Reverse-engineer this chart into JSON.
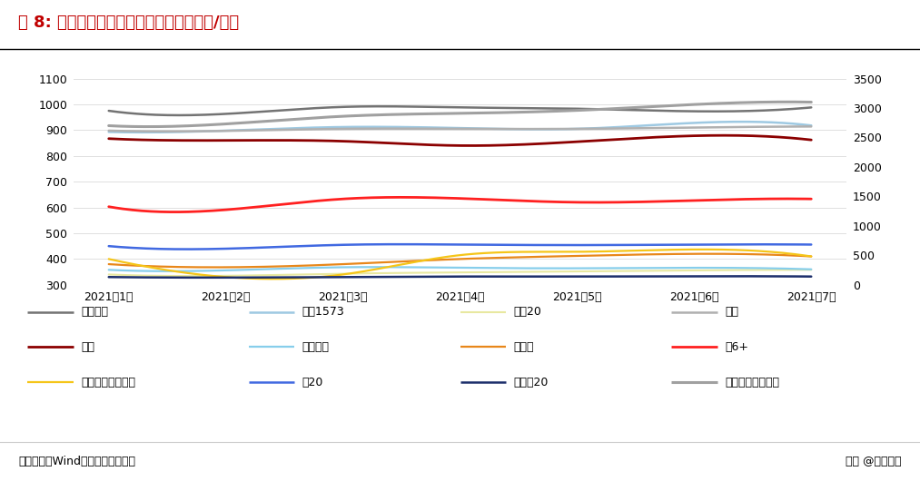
{
  "title": "图 8: 主要单品批价均稳定向上（单位：元/瓶）",
  "x_labels": [
    "2021年1月",
    "2021年2月",
    "2021年3月",
    "2021年4月",
    "2021年5月",
    "2021年6月",
    "2021年7月"
  ],
  "ylim_left": [
    300,
    1100
  ],
  "ylim_right": [
    0,
    3500
  ],
  "yticks_left": [
    300,
    400,
    500,
    600,
    700,
    800,
    900,
    1000,
    1100
  ],
  "yticks_right": [
    0,
    500,
    1000,
    1500,
    2000,
    2500,
    3000,
    3500
  ],
  "source_text": "资料来源：Wind，浙商证券研究所",
  "watermark": "头条 @远瞻智库",
  "series": [
    {
      "name": "八代普五",
      "color": "#737373",
      "linewidth": 1.8,
      "axis": "left",
      "values": [
        975,
        963,
        990,
        988,
        983,
        973,
        988
      ]
    },
    {
      "name": "国窖1573",
      "color": "#9ec9e2",
      "linewidth": 1.8,
      "axis": "left",
      "values": [
        893,
        898,
        912,
        908,
        905,
        928,
        918
      ]
    },
    {
      "name": "青花20",
      "color": "#e8e8a0",
      "linewidth": 1.5,
      "axis": "left",
      "values": [
        340,
        335,
        343,
        348,
        352,
        356,
        358
      ]
    },
    {
      "name": "井台",
      "color": "#b0b0b0",
      "linewidth": 1.8,
      "axis": "left",
      "values": [
        898,
        897,
        905,
        905,
        905,
        910,
        914
      ]
    },
    {
      "name": "内参",
      "color": "#8b0000",
      "linewidth": 2.0,
      "axis": "left",
      "values": [
        867,
        860,
        857,
        840,
        855,
        878,
        862
      ]
    },
    {
      "name": "品味舍得",
      "color": "#87ceeb",
      "linewidth": 1.6,
      "axis": "left",
      "values": [
        358,
        356,
        368,
        366,
        364,
        366,
        360
      ]
    },
    {
      "name": "水晶剑",
      "color": "#e8871a",
      "linewidth": 1.6,
      "axis": "left",
      "values": [
        380,
        368,
        380,
        400,
        412,
        420,
        410
      ]
    },
    {
      "name": "梦6+",
      "color": "#ff2020",
      "linewidth": 2.0,
      "axis": "left",
      "values": [
        603,
        591,
        633,
        635,
        620,
        627,
        633
      ]
    },
    {
      "name": "四开（经历换代）",
      "color": "#f5c518",
      "linewidth": 1.6,
      "axis": "left",
      "values": [
        400,
        330,
        340,
        415,
        428,
        437,
        410
      ]
    },
    {
      "name": "古20",
      "color": "#4169e1",
      "linewidth": 1.8,
      "axis": "left",
      "values": [
        450,
        440,
        455,
        456,
        454,
        456,
        456
      ]
    },
    {
      "name": "口子窖20",
      "color": "#1c2e6b",
      "linewidth": 1.8,
      "axis": "left",
      "values": [
        330,
        328,
        330,
        332,
        332,
        333,
        332
      ]
    },
    {
      "name": "飞天茅台（右轴）",
      "color": "#a0a0a0",
      "linewidth": 2.2,
      "axis": "right",
      "values": [
        2700,
        2730,
        2860,
        2910,
        2960,
        3060,
        3100
      ]
    }
  ],
  "legend_order": [
    [
      "八代普五",
      "国窖1573",
      "青花20",
      "井台"
    ],
    [
      "内参",
      "品味舍得",
      "水晶剑",
      "梦6+"
    ],
    [
      "四开（经历换代）",
      "古20",
      "口子窖20",
      "飞天茅台（右轴）"
    ]
  ]
}
